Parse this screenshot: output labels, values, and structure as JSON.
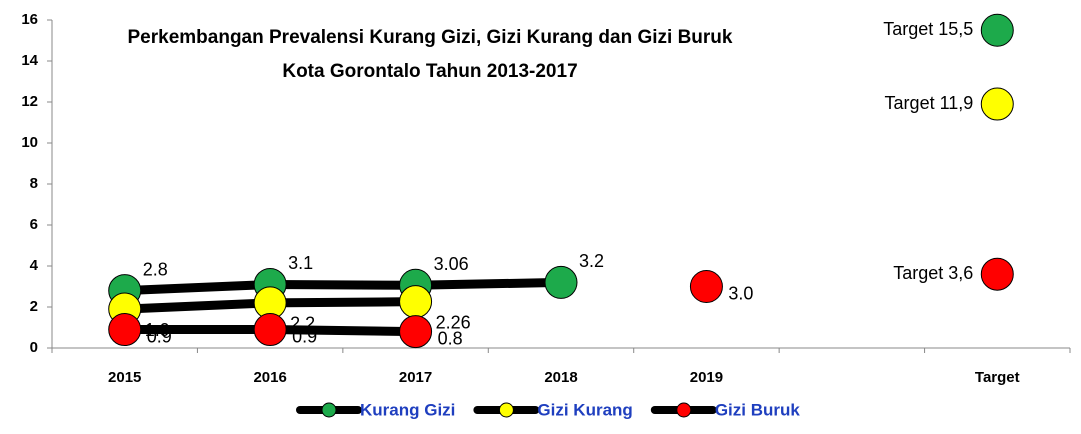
{
  "chart_data": {
    "type": "line",
    "title": [
      "Perkembangan Prevalensi Kurang Gizi, Gizi Kurang dan Gizi Buruk",
      "Kota Gorontalo Tahun 2013-2017"
    ],
    "categories": [
      "2015",
      "2016",
      "2017",
      "2018",
      "2019",
      null,
      "Target"
    ],
    "line_color": "#000000",
    "series": [
      {
        "name": "Kurang Gizi",
        "color": "#1daa4b",
        "values": [
          2.8,
          3.1,
          3.06,
          3.2,
          null,
          null,
          15.5
        ],
        "value_labels": [
          "2.8",
          "3.1",
          "3.06",
          "3.2",
          null,
          null,
          "Target 15,5"
        ]
      },
      {
        "name": "Gizi Kurang",
        "color": "#ffff00",
        "values": [
          1.9,
          2.2,
          2.26,
          null,
          null,
          null,
          11.9
        ],
        "value_labels": [
          "1.9",
          "2.2",
          "2.26",
          null,
          null,
          null,
          "Target 11,9"
        ]
      },
      {
        "name": "Gizi Buruk",
        "color": "#ff0000",
        "values": [
          0.9,
          0.9,
          0.8,
          null,
          3.0,
          null,
          3.6
        ],
        "value_labels": [
          "0.9",
          "0.9",
          "0.8",
          null,
          "3.0",
          null,
          "Target 3,6"
        ]
      }
    ],
    "ylim": [
      0,
      16
    ],
    "yticks": [
      0,
      2,
      4,
      6,
      8,
      10,
      12,
      14,
      16
    ]
  }
}
